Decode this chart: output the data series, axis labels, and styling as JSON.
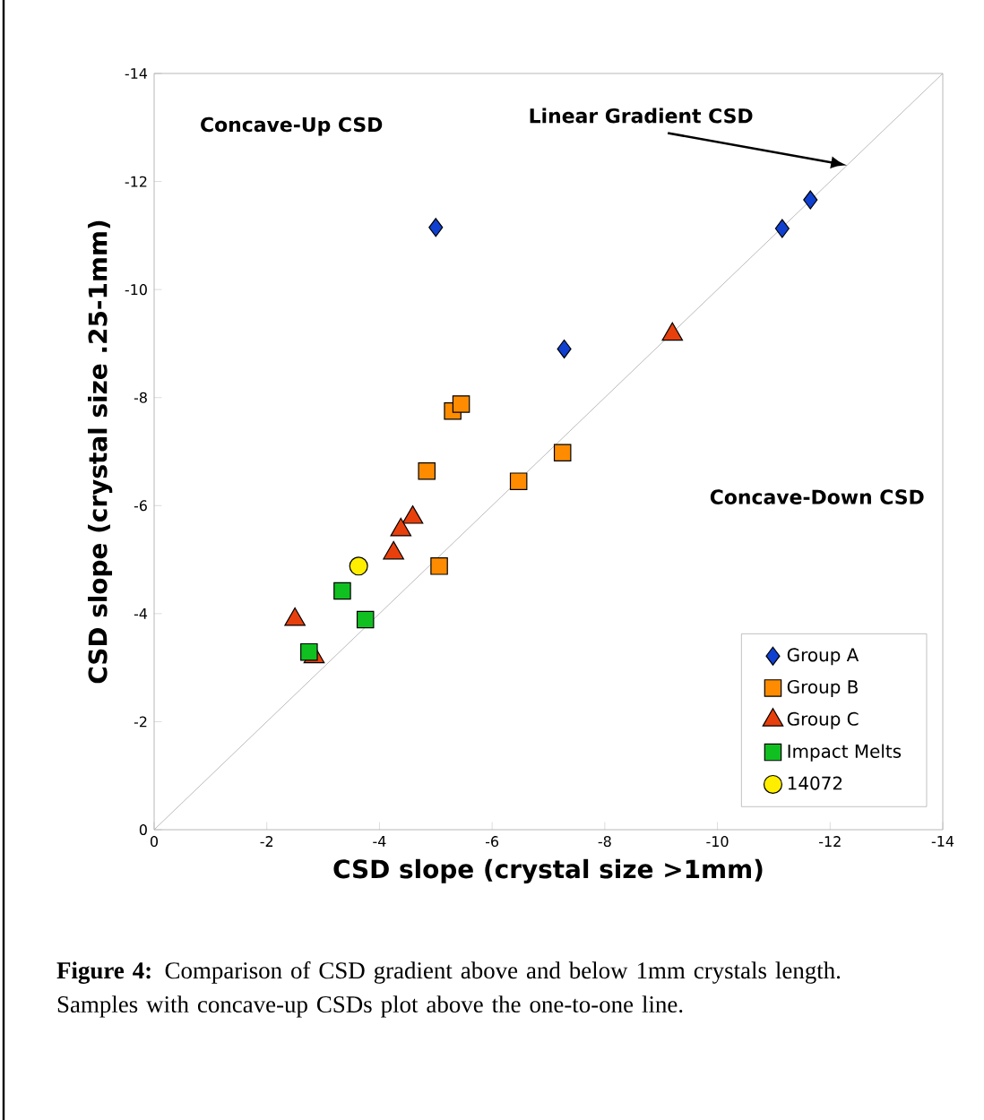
{
  "chart_data": {
    "type": "scatter",
    "xlabel": "CSD slope (crystal size >1mm)",
    "ylabel": "CSD slope (crystal size .25-1mm)",
    "xlim": [
      0,
      -14
    ],
    "ylim": [
      0,
      -14
    ],
    "xticks": [
      0,
      -2,
      -4,
      -6,
      -8,
      -10,
      -12,
      -14
    ],
    "yticks": [
      0,
      -2,
      -4,
      -6,
      -8,
      -10,
      -12,
      -14
    ],
    "grid": false,
    "legend": "bottom right",
    "series": [
      {
        "name": null,
        "type": "line",
        "marker": "none",
        "line_style": "solid",
        "color": "#aaaaaa",
        "x": [
          0,
          -14
        ],
        "values": [
          0,
          -14
        ]
      },
      {
        "name": "Group A",
        "marker": "diamond",
        "color": "#1040d0",
        "x": [
          -5.0,
          -11.15,
          -11.65,
          -7.28
        ],
        "values": [
          -11.15,
          -11.13,
          -11.66,
          -8.9
        ]
      },
      {
        "name": "Group B",
        "marker": "square",
        "color": "#ff8c00",
        "x": [
          -5.3,
          -5.45,
          -4.84,
          -7.25,
          -6.47,
          -5.06
        ],
        "values": [
          -7.75,
          -7.88,
          -6.64,
          -6.98,
          -6.45,
          -4.88
        ]
      },
      {
        "name": "Group C",
        "marker": "triangle",
        "color": "#e8400c",
        "x": [
          -9.2,
          -4.59,
          -4.38,
          -4.25,
          -2.5,
          -2.84
        ],
        "values": [
          -9.17,
          -5.78,
          -5.55,
          -5.12,
          -3.89,
          -3.2
        ]
      },
      {
        "name": "Impact Melts",
        "marker": "square",
        "color": "#10c020",
        "x": [
          -3.34,
          -3.75,
          -2.75
        ],
        "values": [
          -4.42,
          -3.89,
          -3.29
        ]
      },
      {
        "name": "14072",
        "marker": "circle",
        "color": "#ffee00",
        "x": [
          -3.63
        ],
        "values": [
          -4.88
        ]
      }
    ],
    "annotations": [
      "Concave-Up CSD",
      {
        "text": "Linear Gradient CSD",
        "x": -12.3,
        "y": -12.3
      },
      "Concave-Down CSD",
      "**Figure 4:** Comparison of CSD gradient above and below 1mm crystals length.  Samples with concave-up CSDs plot above the one-to-one line."
    ]
  }
}
